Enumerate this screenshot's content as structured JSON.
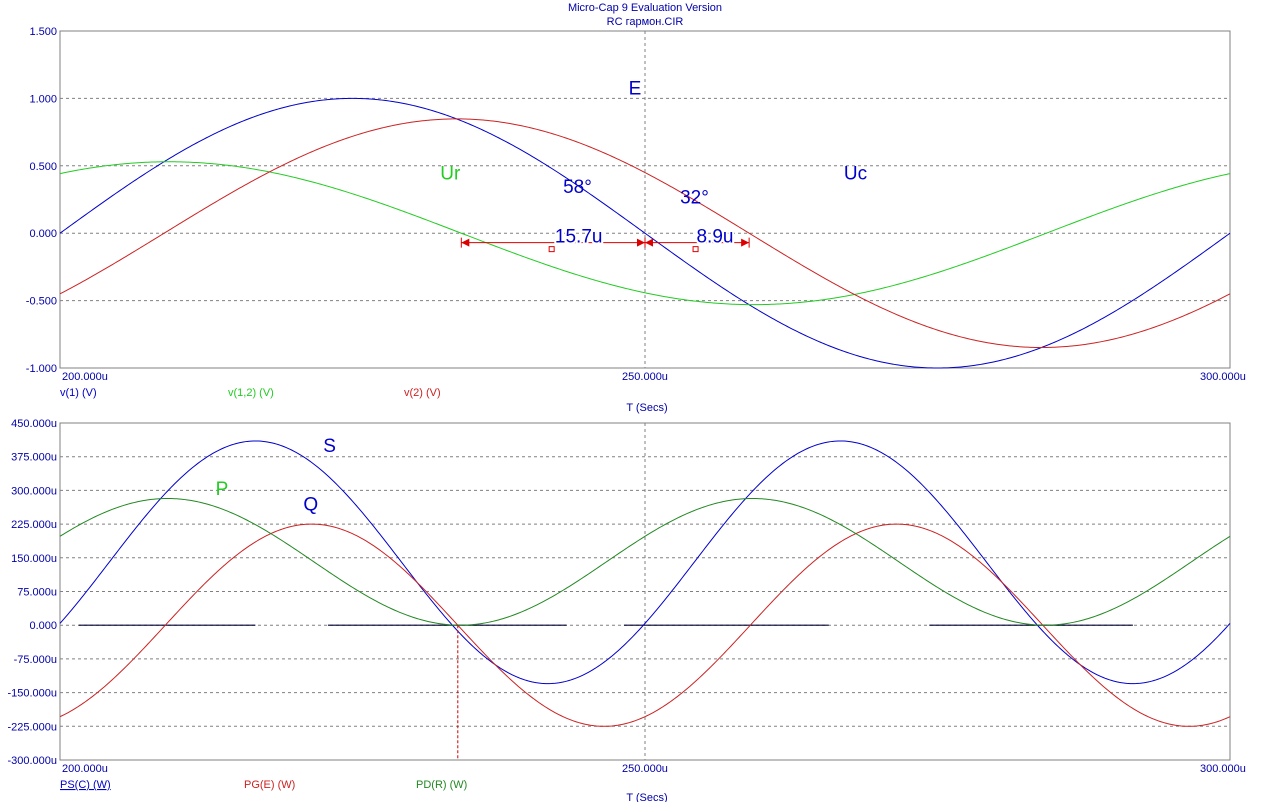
{
  "app_title": "Micro-Cap 9 Evaluation Version",
  "file_title": "RC гармон.CIR",
  "chart_data": [
    {
      "type": "line",
      "x_unit_scale": 1e-06,
      "xlim": [
        200,
        300
      ],
      "ylim": [
        -1.0,
        1.5
      ],
      "x_ticks": [
        200,
        250,
        300
      ],
      "x_tick_labels": [
        "200.000u",
        "250.000u",
        "300.000u"
      ],
      "y_ticks": [
        -1.0,
        -0.5,
        0.0,
        0.5,
        1.0,
        1.5
      ],
      "y_tick_labels": [
        "-1.000",
        "-0.500",
        "0.000",
        "0.500",
        "1.000",
        "1.500"
      ],
      "xlabel": "T (Secs)",
      "grid": true,
      "cursor_x": 250,
      "series": [
        {
          "name": "v(1) (V)",
          "color": "#0000cc",
          "amplitude": 1.0,
          "period_us": 100,
          "zero_up_us": 200
        },
        {
          "name": "v(1,2) (V)",
          "color": "#22cc22",
          "amplitude": 0.53,
          "period_us": 100,
          "zero_up_us": 184.3
        },
        {
          "name": "v(2) (V)",
          "color": "#cc2222",
          "amplitude": 0.848,
          "period_us": 100,
          "zero_up_us": 208.9
        }
      ],
      "annotations": [
        {
          "text": "E",
          "x": 248.6,
          "y": 1.03,
          "color": "#0000cc"
        },
        {
          "text": "Ur",
          "x": 232.5,
          "y": 0.4,
          "color": "#22cc22"
        },
        {
          "text": "Uc",
          "x": 267,
          "y": 0.4,
          "color": "#0000cc"
        },
        {
          "text": "58°",
          "x": 243,
          "y": 0.3,
          "color": "#0000cc"
        },
        {
          "text": "32°",
          "x": 253,
          "y": 0.22,
          "color": "#0000cc"
        },
        {
          "text": "15.7u",
          "x": 242.3,
          "y": -0.07,
          "color": "#0000cc"
        },
        {
          "text": "8.9u",
          "x": 254.4,
          "y": -0.07,
          "color": "#0000cc"
        }
      ],
      "measurements": [
        {
          "from": 234.3,
          "to": 250.0,
          "y": -0.07
        },
        {
          "from": 250.0,
          "to": 258.9,
          "y": -0.07
        }
      ]
    },
    {
      "type": "line",
      "x_unit_scale": 1e-06,
      "xlim": [
        200,
        300
      ],
      "ylim": [
        -300,
        450
      ],
      "x_ticks": [
        200,
        250,
        300
      ],
      "x_tick_labels": [
        "200.000u",
        "250.000u",
        "300.000u"
      ],
      "y_ticks": [
        -300,
        -225,
        -150,
        -75,
        0,
        75,
        150,
        225,
        300,
        375,
        450
      ],
      "y_tick_labels": [
        "-300.000u",
        "-225.000u",
        "-150.000u",
        "-75.000u",
        "0.000",
        "75.000u",
        "150.000u",
        "225.000u",
        "300.000u",
        "375.000u",
        "450.000u"
      ],
      "xlabel": "T (Secs)",
      "grid": true,
      "cursor_x": 250,
      "marker_x": 234,
      "series": [
        {
          "name": "PS(C) (W)",
          "color": "#0000cc",
          "offset": 140,
          "amplitude": 270,
          "period_us": 50,
          "phase_peak_us": 216.7
        },
        {
          "name": "PG(E) (W)",
          "color": "#cc2222",
          "offset": 0,
          "amplitude": 225,
          "period_us": 50,
          "phase_peak_us": 221.5
        },
        {
          "name": "PD(R) (W)",
          "color": "#228822",
          "offset": 141,
          "amplitude": 141,
          "period_us": 50,
          "phase_peak_us": 209.2
        }
      ],
      "annotations": [
        {
          "text": "S",
          "x": 222.5,
          "y": 385,
          "color": "#0000cc"
        },
        {
          "text": "P",
          "x": 213.3,
          "y": 290,
          "color": "#22cc22"
        },
        {
          "text": "Q",
          "x": 220.8,
          "y": 255,
          "color": "#0000cc"
        }
      ],
      "baseline_segments": [
        [
          201.6,
          216.7
        ],
        [
          222.9,
          243.3
        ],
        [
          248.2,
          265.7
        ],
        [
          274.3,
          291.7
        ]
      ]
    }
  ]
}
